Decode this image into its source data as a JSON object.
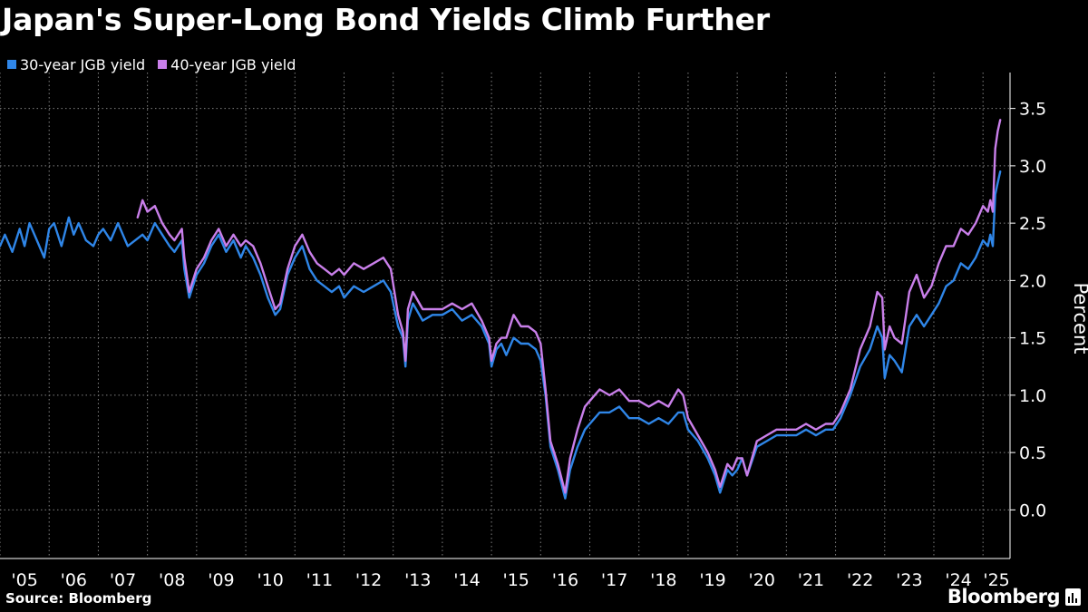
{
  "title": "Japan's Super-Long Bond Yields Climb Further",
  "source": "Source: Bloomberg",
  "brand": "Bloomberg",
  "colors": {
    "background": "#000000",
    "series_30y": "#2f86e8",
    "series_40y": "#c97fea",
    "grid": "#808080",
    "text": "#ffffff"
  },
  "chart_data": {
    "type": "line",
    "title": "Japan's Super-Long Bond Yields Climb Further",
    "ylabel": "Percent",
    "xlabel": "",
    "ylim": [
      -0.25,
      3.75
    ],
    "yticks": [
      0.0,
      0.5,
      1.0,
      1.5,
      2.0,
      2.5,
      3.0,
      3.5
    ],
    "ytick_labels": [
      "0.0",
      "0.5",
      "1.0",
      "1.5",
      "2.0",
      "2.5",
      "3.0",
      "3.5"
    ],
    "xlim": [
      2005.0,
      2025.55
    ],
    "xticks": [
      2005,
      2006,
      2007,
      2008,
      2009,
      2010,
      2011,
      2012,
      2013,
      2014,
      2015,
      2016,
      2017,
      2018,
      2019,
      2020,
      2021,
      2022,
      2023,
      2024,
      2025
    ],
    "xtick_labels": [
      "'05",
      "'06",
      "'07",
      "'08",
      "'09",
      "'10",
      "'11",
      "'12",
      "'13",
      "'14",
      "'15",
      "'16",
      "'17",
      "'18",
      "'19",
      "'20",
      "'21",
      "'22",
      "'23",
      "'24",
      "'25"
    ],
    "grid": true,
    "legend_position": "top-left",
    "series": [
      {
        "name": "30-year JGB yield",
        "color": "#2f86e8",
        "x": [
          2005.0,
          2005.1,
          2005.25,
          2005.4,
          2005.5,
          2005.6,
          2005.75,
          2005.9,
          2006.0,
          2006.1,
          2006.25,
          2006.4,
          2006.5,
          2006.6,
          2006.75,
          2006.9,
          2007.0,
          2007.1,
          2007.25,
          2007.4,
          2007.5,
          2007.6,
          2007.75,
          2007.9,
          2008.0,
          2008.15,
          2008.3,
          2008.45,
          2008.55,
          2008.7,
          2008.75,
          2008.85,
          2009.0,
          2009.15,
          2009.3,
          2009.45,
          2009.6,
          2009.75,
          2009.9,
          2010.0,
          2010.15,
          2010.3,
          2010.45,
          2010.6,
          2010.7,
          2010.85,
          2011.0,
          2011.15,
          2011.3,
          2011.45,
          2011.6,
          2011.75,
          2011.9,
          2012.0,
          2012.2,
          2012.4,
          2012.6,
          2012.8,
          2012.95,
          2013.1,
          2013.2,
          2013.25,
          2013.3,
          2013.4,
          2013.6,
          2013.8,
          2014.0,
          2014.2,
          2014.4,
          2014.6,
          2014.8,
          2014.95,
          2015.0,
          2015.1,
          2015.2,
          2015.3,
          2015.45,
          2015.6,
          2015.75,
          2015.9,
          2016.0,
          2016.1,
          2016.2,
          2016.35,
          2016.5,
          2016.6,
          2016.75,
          2016.9,
          2017.0,
          2017.2,
          2017.4,
          2017.6,
          2017.8,
          2018.0,
          2018.2,
          2018.4,
          2018.6,
          2018.8,
          2018.9,
          2019.0,
          2019.2,
          2019.4,
          2019.55,
          2019.65,
          2019.8,
          2019.9,
          2020.0,
          2020.1,
          2020.2,
          2020.4,
          2020.6,
          2020.8,
          2021.0,
          2021.2,
          2021.4,
          2021.6,
          2021.8,
          2021.95,
          2022.1,
          2022.3,
          2022.5,
          2022.7,
          2022.85,
          2022.95,
          2023.0,
          2023.1,
          2023.2,
          2023.35,
          2023.5,
          2023.65,
          2023.8,
          2023.95,
          2024.1,
          2024.25,
          2024.4,
          2024.55,
          2024.7,
          2024.85,
          2025.0,
          2025.1,
          2025.15,
          2025.2,
          2025.25,
          2025.3,
          2025.35
        ],
        "y": [
          2.3,
          2.4,
          2.25,
          2.45,
          2.3,
          2.5,
          2.35,
          2.2,
          2.45,
          2.5,
          2.3,
          2.55,
          2.4,
          2.5,
          2.35,
          2.3,
          2.4,
          2.45,
          2.35,
          2.5,
          2.4,
          2.3,
          2.35,
          2.4,
          2.35,
          2.5,
          2.4,
          2.3,
          2.25,
          2.35,
          2.1,
          1.85,
          2.05,
          2.15,
          2.3,
          2.4,
          2.25,
          2.35,
          2.2,
          2.3,
          2.2,
          2.05,
          1.85,
          1.7,
          1.75,
          2.05,
          2.2,
          2.3,
          2.1,
          2.0,
          1.95,
          1.9,
          1.95,
          1.85,
          1.95,
          1.9,
          1.95,
          2.0,
          1.9,
          1.6,
          1.5,
          1.25,
          1.65,
          1.8,
          1.65,
          1.7,
          1.7,
          1.75,
          1.65,
          1.7,
          1.6,
          1.45,
          1.25,
          1.4,
          1.45,
          1.35,
          1.5,
          1.45,
          1.45,
          1.4,
          1.3,
          1.0,
          0.55,
          0.35,
          0.1,
          0.35,
          0.55,
          0.7,
          0.75,
          0.85,
          0.85,
          0.9,
          0.8,
          0.8,
          0.75,
          0.8,
          0.75,
          0.85,
          0.85,
          0.7,
          0.6,
          0.45,
          0.3,
          0.15,
          0.35,
          0.3,
          0.35,
          0.45,
          0.3,
          0.55,
          0.6,
          0.65,
          0.65,
          0.65,
          0.7,
          0.65,
          0.7,
          0.7,
          0.8,
          1.0,
          1.25,
          1.4,
          1.6,
          1.5,
          1.15,
          1.35,
          1.3,
          1.2,
          1.6,
          1.7,
          1.6,
          1.7,
          1.8,
          1.95,
          2.0,
          2.15,
          2.1,
          2.2,
          2.35,
          2.3,
          2.4,
          2.3,
          2.75,
          2.85,
          2.95
        ]
      },
      {
        "name": "40-year JGB yield",
        "color": "#c97fea",
        "x": [
          2007.8,
          2007.9,
          2008.0,
          2008.15,
          2008.3,
          2008.45,
          2008.55,
          2008.7,
          2008.75,
          2008.85,
          2009.0,
          2009.15,
          2009.3,
          2009.45,
          2009.6,
          2009.75,
          2009.9,
          2010.0,
          2010.15,
          2010.3,
          2010.45,
          2010.6,
          2010.7,
          2010.85,
          2011.0,
          2011.15,
          2011.3,
          2011.45,
          2011.6,
          2011.75,
          2011.9,
          2012.0,
          2012.2,
          2012.4,
          2012.6,
          2012.8,
          2012.95,
          2013.1,
          2013.2,
          2013.25,
          2013.3,
          2013.4,
          2013.6,
          2013.8,
          2014.0,
          2014.2,
          2014.4,
          2014.6,
          2014.8,
          2014.95,
          2015.0,
          2015.1,
          2015.2,
          2015.3,
          2015.45,
          2015.6,
          2015.75,
          2015.9,
          2016.0,
          2016.1,
          2016.2,
          2016.35,
          2016.5,
          2016.6,
          2016.75,
          2016.9,
          2017.0,
          2017.2,
          2017.4,
          2017.6,
          2017.8,
          2018.0,
          2018.2,
          2018.4,
          2018.6,
          2018.8,
          2018.9,
          2019.0,
          2019.2,
          2019.4,
          2019.55,
          2019.65,
          2019.8,
          2019.9,
          2020.0,
          2020.1,
          2020.2,
          2020.4,
          2020.6,
          2020.8,
          2021.0,
          2021.2,
          2021.4,
          2021.6,
          2021.8,
          2021.95,
          2022.1,
          2022.3,
          2022.5,
          2022.7,
          2022.85,
          2022.95,
          2023.0,
          2023.1,
          2023.2,
          2023.35,
          2023.5,
          2023.65,
          2023.8,
          2023.95,
          2024.1,
          2024.25,
          2024.4,
          2024.55,
          2024.7,
          2024.85,
          2025.0,
          2025.1,
          2025.15,
          2025.2,
          2025.25,
          2025.3,
          2025.35
        ],
        "y": [
          2.55,
          2.7,
          2.6,
          2.65,
          2.5,
          2.4,
          2.35,
          2.45,
          2.2,
          1.9,
          2.1,
          2.2,
          2.35,
          2.45,
          2.3,
          2.4,
          2.3,
          2.35,
          2.3,
          2.15,
          1.95,
          1.75,
          1.8,
          2.1,
          2.3,
          2.4,
          2.25,
          2.15,
          2.1,
          2.05,
          2.1,
          2.05,
          2.15,
          2.1,
          2.15,
          2.2,
          2.1,
          1.7,
          1.55,
          1.3,
          1.75,
          1.9,
          1.75,
          1.75,
          1.75,
          1.8,
          1.75,
          1.8,
          1.65,
          1.5,
          1.3,
          1.45,
          1.5,
          1.5,
          1.7,
          1.6,
          1.6,
          1.55,
          1.45,
          1.05,
          0.6,
          0.4,
          0.15,
          0.45,
          0.7,
          0.9,
          0.95,
          1.05,
          1.0,
          1.05,
          0.95,
          0.95,
          0.9,
          0.95,
          0.9,
          1.05,
          1.0,
          0.8,
          0.65,
          0.5,
          0.35,
          0.2,
          0.4,
          0.35,
          0.45,
          0.45,
          0.3,
          0.6,
          0.65,
          0.7,
          0.7,
          0.7,
          0.75,
          0.7,
          0.75,
          0.75,
          0.85,
          1.05,
          1.4,
          1.6,
          1.9,
          1.85,
          1.4,
          1.6,
          1.5,
          1.45,
          1.9,
          2.05,
          1.85,
          1.95,
          2.15,
          2.3,
          2.3,
          2.45,
          2.4,
          2.5,
          2.65,
          2.6,
          2.7,
          2.6,
          3.15,
          3.3,
          3.4
        ]
      }
    ]
  }
}
